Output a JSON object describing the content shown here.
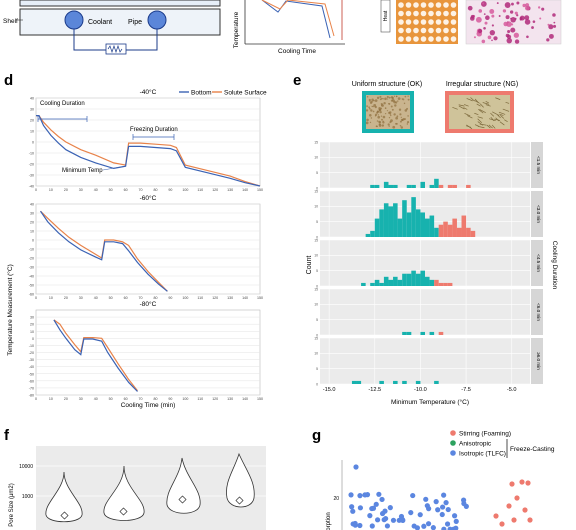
{
  "panel_labels": {
    "d": "d",
    "e": "e",
    "f": "f",
    "g": "g"
  },
  "top_strip": {
    "shelf_label": "Shelf",
    "coolant_label": "Coolant",
    "pipe_label": "Pipe",
    "y_label": "Temperature",
    "x_label": "Cooling Time",
    "tag_label": "Heat"
  },
  "legend_d": {
    "bottom": "Bottom",
    "solute": "Solute Surface"
  },
  "colors": {
    "bottom": "#3a62b4",
    "solute": "#e8834a",
    "teal": "#17b2ae",
    "salmon": "#ee7a6e",
    "stirring": "#ee7a6e",
    "anisotropic": "#2ca25f",
    "isotropic": "#5b86e0"
  },
  "annotations_d": {
    "cooling_duration": "Cooling Duration",
    "freezing_duration": "Freezing Duration",
    "minimum_temp": "Minimum Temp"
  },
  "axis_d": {
    "ylabel": "Temperature Measurement (°C)",
    "xlabel": "Cooling Time (min)"
  },
  "panel_e": {
    "uniform_label": "Uniform structure (OK)",
    "irregular_label": "Irregular structure (NG)",
    "ylabel": "Count",
    "xlabel": "Minimum Temperature (°C)",
    "right_label": "Cooling Duration",
    "x_ticks": [
      "-15.0",
      "-12.5",
      "-10.0",
      "-7.5",
      "-5.0"
    ],
    "facets": [
      "<1.5 min",
      "<3.0 min",
      "<4.5 min",
      "<6.0 min",
      "≥6.0 min"
    ]
  },
  "panel_f": {
    "ylabel": "Pore Size (μm2)",
    "yticks": [
      "10000",
      "1000"
    ]
  },
  "panel_g": {
    "legend": [
      "Stirring (Foaming)",
      "Anisotropic",
      "Isotropic (TLFC)"
    ],
    "bracket_label": "Freeze-Casting",
    "ylabel": "sorption",
    "ytick": "20"
  },
  "chart_data": [
    {
      "type": "line",
      "title": "-40°C",
      "xlim": [
        0,
        150
      ],
      "ylim": [
        -40,
        40
      ],
      "x_ticks": [
        "0",
        "10",
        "20",
        "30",
        "40",
        "50",
        "60",
        "70",
        "80",
        "90",
        "100",
        "110",
        "120",
        "130",
        "140",
        "150"
      ],
      "y_ticks": [
        "40",
        "30",
        "20",
        "10",
        "0",
        "-10",
        "-20",
        "-30",
        "-40"
      ],
      "series": [
        {
          "name": "Bottom",
          "points": [
            [
              0,
              24
            ],
            [
              2,
              24
            ],
            [
              5,
              15
            ],
            [
              10,
              6
            ],
            [
              15,
              -1
            ],
            [
              20,
              -7
            ],
            [
              30,
              -14
            ],
            [
              40,
              -19
            ],
            [
              52,
              -24
            ],
            [
              60,
              -22
            ],
            [
              62,
              -4
            ],
            [
              70,
              -4
            ],
            [
              80,
              -5
            ],
            [
              90,
              -6
            ],
            [
              94,
              -8
            ],
            [
              100,
              -23
            ],
            [
              115,
              -28
            ],
            [
              130,
              -33
            ],
            [
              140,
              -37
            ],
            [
              150,
              -40
            ]
          ]
        },
        {
          "name": "Solute Surface",
          "points": [
            [
              0,
              24
            ],
            [
              2,
              24
            ],
            [
              5,
              18
            ],
            [
              10,
              11
            ],
            [
              15,
              5
            ],
            [
              20,
              0
            ],
            [
              30,
              -7
            ],
            [
              40,
              -12
            ],
            [
              52,
              -19
            ],
            [
              60,
              -21
            ],
            [
              62,
              -1
            ],
            [
              70,
              -1
            ],
            [
              80,
              -2
            ],
            [
              90,
              -3
            ],
            [
              94,
              -5
            ],
            [
              100,
              -21
            ],
            [
              115,
              -26
            ],
            [
              130,
              -31
            ],
            [
              140,
              -36
            ],
            [
              150,
              -40
            ]
          ]
        }
      ]
    },
    {
      "type": "line",
      "title": "-60°C",
      "xlim": [
        0,
        150
      ],
      "ylim": [
        -60,
        40
      ],
      "x_ticks": [
        "0",
        "10",
        "20",
        "30",
        "40",
        "50",
        "60",
        "70",
        "80",
        "90",
        "100",
        "110",
        "120",
        "130",
        "140",
        "150"
      ],
      "y_ticks": [
        "40",
        "30",
        "20",
        "10",
        "0",
        "-10",
        "-20",
        "-30",
        "-40",
        "-50",
        "-60"
      ],
      "series": [
        {
          "name": "Bottom",
          "points": [
            [
              3,
              32
            ],
            [
              8,
              20
            ],
            [
              15,
              8
            ],
            [
              22,
              -2
            ],
            [
              30,
              -11
            ],
            [
              40,
              -19
            ],
            [
              44,
              -22
            ],
            [
              46,
              -2
            ],
            [
              52,
              -2
            ],
            [
              58,
              -4
            ],
            [
              62,
              -12
            ],
            [
              68,
              -25
            ],
            [
              75,
              -38
            ],
            [
              82,
              -49
            ],
            [
              88,
              -57
            ]
          ]
        },
        {
          "name": "Solute Surface",
          "points": [
            [
              3,
              32
            ],
            [
              8,
              24
            ],
            [
              15,
              13
            ],
            [
              22,
              3
            ],
            [
              30,
              -6
            ],
            [
              40,
              -16
            ],
            [
              44,
              -20
            ],
            [
              46,
              0
            ],
            [
              52,
              0
            ],
            [
              58,
              -2
            ],
            [
              62,
              -6
            ],
            [
              68,
              -21
            ],
            [
              75,
              -35
            ],
            [
              82,
              -47
            ],
            [
              88,
              -57
            ]
          ]
        }
      ]
    },
    {
      "type": "line",
      "title": "-80°C",
      "xlim": [
        0,
        150
      ],
      "ylim": [
        -80,
        40
      ],
      "x_ticks": [
        "0",
        "10",
        "20",
        "30",
        "40",
        "50",
        "60",
        "70",
        "80",
        "90",
        "100",
        "110",
        "120",
        "130",
        "140",
        "150"
      ],
      "y_ticks": [
        "30",
        "20",
        "10",
        "0",
        "-10",
        "-20",
        "-30",
        "-40",
        "-50",
        "-60",
        "-70",
        "-80"
      ],
      "series": [
        {
          "name": "Bottom",
          "points": [
            [
              12,
              26
            ],
            [
              16,
              12
            ],
            [
              20,
              0
            ],
            [
              26,
              -16
            ],
            [
              30,
              -23
            ],
            [
              32,
              -1
            ],
            [
              38,
              -1
            ],
            [
              44,
              -4
            ],
            [
              48,
              -20
            ],
            [
              55,
              -42
            ],
            [
              62,
              -62
            ],
            [
              68,
              -75
            ]
          ]
        },
        {
          "name": "Solute Surface",
          "points": [
            [
              12,
              26
            ],
            [
              16,
              20
            ],
            [
              20,
              7
            ],
            [
              26,
              -9
            ],
            [
              30,
              -19
            ],
            [
              32,
              1
            ],
            [
              38,
              1
            ],
            [
              44,
              0
            ],
            [
              48,
              -13
            ],
            [
              55,
              -36
            ],
            [
              62,
              -58
            ],
            [
              68,
              -74
            ]
          ]
        }
      ]
    },
    {
      "type": "bar",
      "title": "",
      "xlabel": "Minimum Temperature (°C)",
      "ylabel": "Count",
      "xlim": [
        -15.5,
        -4
      ],
      "bin_width": 0.25,
      "facets": [
        {
          "name": "<1.5 min",
          "ymax": 15,
          "teal": [
            [
              -12.75,
              1
            ],
            [
              -12.5,
              1
            ],
            [
              -12.0,
              2
            ],
            [
              -11.75,
              1
            ],
            [
              -11.5,
              1
            ],
            [
              -10.75,
              1
            ],
            [
              -10.5,
              1
            ],
            [
              -10.0,
              2
            ],
            [
              -9.5,
              1
            ],
            [
              -9.25,
              3
            ]
          ],
          "salmon": [
            [
              -9.0,
              1
            ],
            [
              -8.5,
              1
            ],
            [
              -8.25,
              1
            ],
            [
              -7.5,
              1
            ]
          ]
        },
        {
          "name": "<3.0 min",
          "ymax": 15,
          "teal": [
            [
              -13.0,
              1
            ],
            [
              -12.75,
              2
            ],
            [
              -12.5,
              6
            ],
            [
              -12.25,
              9
            ],
            [
              -12.0,
              11
            ],
            [
              -11.75,
              10
            ],
            [
              -11.5,
              11
            ],
            [
              -11.25,
              6
            ],
            [
              -11.0,
              12
            ],
            [
              -10.75,
              8
            ],
            [
              -10.5,
              13
            ],
            [
              -10.25,
              9
            ],
            [
              -10.0,
              8
            ],
            [
              -9.75,
              6
            ],
            [
              -9.5,
              7
            ],
            [
              -9.25,
              3
            ]
          ],
          "salmon": [
            [
              -9.0,
              4
            ],
            [
              -8.75,
              5
            ],
            [
              -8.5,
              4
            ],
            [
              -8.25,
              6
            ],
            [
              -8.0,
              3
            ],
            [
              -7.75,
              7
            ],
            [
              -7.5,
              3
            ],
            [
              -7.25,
              2
            ]
          ]
        },
        {
          "name": "<4.5 min",
          "ymax": 15,
          "teal": [
            [
              -13.25,
              1
            ],
            [
              -12.75,
              1
            ],
            [
              -12.5,
              2
            ],
            [
              -12.25,
              1
            ],
            [
              -12.0,
              3
            ],
            [
              -11.75,
              2
            ],
            [
              -11.5,
              3
            ],
            [
              -11.25,
              2
            ],
            [
              -11.0,
              4
            ],
            [
              -10.75,
              4
            ],
            [
              -10.5,
              5
            ],
            [
              -10.25,
              4
            ],
            [
              -10.0,
              5
            ],
            [
              -9.75,
              3
            ],
            [
              -9.5,
              2
            ]
          ],
          "salmon": [
            [
              -9.25,
              2
            ],
            [
              -9.0,
              1
            ],
            [
              -8.75,
              1
            ],
            [
              -8.5,
              1
            ]
          ]
        },
        {
          "name": "<6.0 min",
          "ymax": 15,
          "teal": [
            [
              -11.0,
              1
            ],
            [
              -10.75,
              1
            ],
            [
              -10.0,
              1
            ],
            [
              -9.5,
              1
            ]
          ],
          "salmon": [
            [
              -9.0,
              1
            ]
          ]
        },
        {
          "name": "≥6.0 min",
          "ymax": 15,
          "teal": [
            [
              -13.75,
              1
            ],
            [
              -13.5,
              1
            ],
            [
              -12.25,
              1
            ],
            [
              -11.5,
              1
            ],
            [
              -11.0,
              1
            ],
            [
              -10.25,
              1
            ],
            [
              -9.25,
              1
            ]
          ],
          "salmon": []
        }
      ]
    }
  ]
}
